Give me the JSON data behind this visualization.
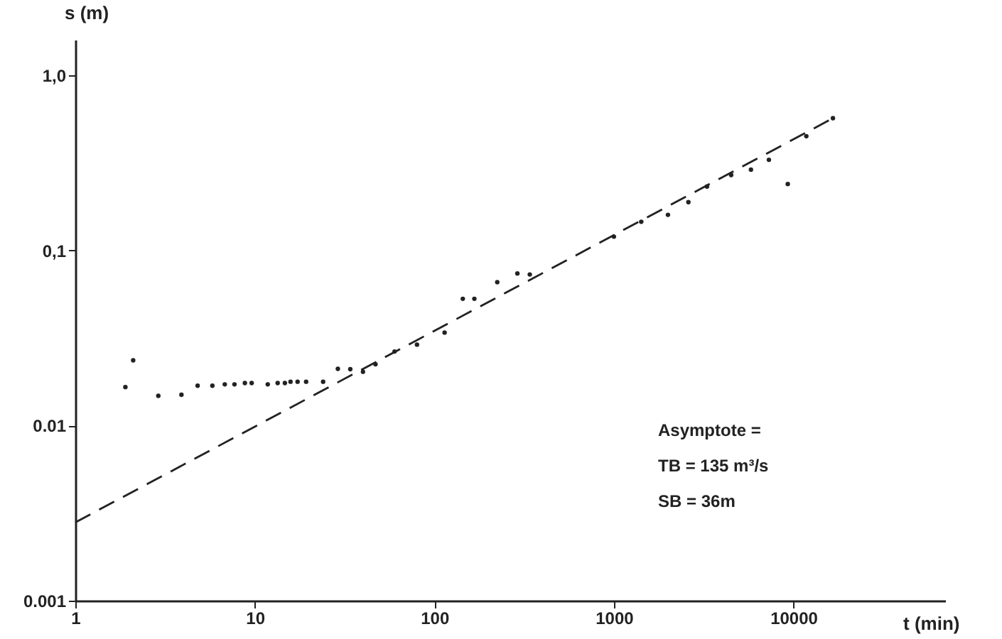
{
  "chart_data": {
    "type": "scatter",
    "xlabel": "t (min)",
    "ylabel": "s (m)",
    "log": "xy",
    "xlim": [
      1,
      70000
    ],
    "ylim": [
      0.001,
      1.6
    ],
    "xticks": [
      1,
      10,
      100,
      1000,
      10000
    ],
    "yticks": [
      0.001,
      0.01,
      {
        "value": 0.1,
        "label": "0,1"
      },
      {
        "value": 1,
        "label": "1,0"
      }
    ],
    "grid": false,
    "series": [
      {
        "color": "#222222",
        "marker": "circle",
        "x": [
          1.9,
          2.1,
          2.9,
          3.9,
          4.8,
          5.8,
          6.8,
          7.7,
          8.8,
          9.6,
          11.8,
          13.4,
          14.7,
          15.8,
          17.3,
          19.3,
          24,
          29,
          34,
          40,
          47,
          60,
          80,
          114,
          144,
          167,
          224,
          290,
          340,
          1000,
          1420,
          2000,
          2600,
          3300,
          4500,
          5800,
          7300,
          9300,
          11800,
          16600
        ],
        "values": [
          0.0166,
          0.0236,
          0.0148,
          0.015,
          0.0169,
          0.0169,
          0.0172,
          0.0172,
          0.0175,
          0.0175,
          0.0172,
          0.0175,
          0.0175,
          0.0178,
          0.0178,
          0.0178,
          0.0178,
          0.0211,
          0.021,
          0.0203,
          0.0224,
          0.0265,
          0.029,
          0.034,
          0.053,
          0.053,
          0.066,
          0.074,
          0.073,
          0.12,
          0.146,
          0.16,
          0.189,
          0.232,
          0.27,
          0.29,
          0.33,
          0.24,
          0.45,
          0.57
        ]
      },
      {
        "type": "line",
        "color": "#222222",
        "line_style": "dashed",
        "x": [
          1,
          16600
        ],
        "values": [
          0.0028,
          0.57
        ]
      }
    ],
    "annotations": [
      "Asymptote =",
      "TB = 135 m³/s",
      "SB = 36m"
    ]
  }
}
